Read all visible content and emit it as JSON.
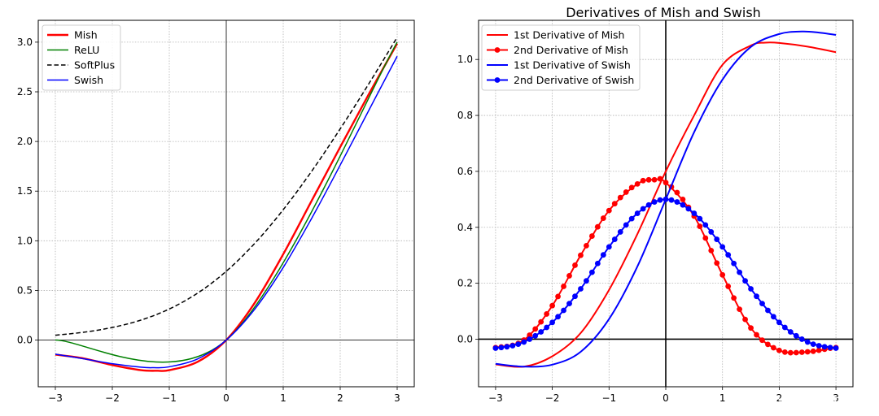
{
  "watermark": "CSDN @芝士不知世_",
  "chart_data": [
    {
      "type": "line",
      "title": "",
      "xlabel": "",
      "ylabel": "",
      "xlim": [
        -3.3,
        3.3
      ],
      "ylim": [
        -0.47,
        3.22
      ],
      "xticks": [
        -3,
        -2,
        -1,
        0,
        1,
        2,
        3
      ],
      "xtick_labels": [
        "−3",
        "−2",
        "−1",
        "0",
        "1",
        "2",
        "3"
      ],
      "yticks": [
        0.0,
        0.5,
        1.0,
        1.5,
        2.0,
        2.5,
        3.0
      ],
      "ytick_labels": [
        "0.0",
        "0.5",
        "1.0",
        "1.5",
        "2.0",
        "2.5",
        "3.0"
      ],
      "grid": true,
      "reference_lines": {
        "vertical_x": 0,
        "horizontal_y": 0
      },
      "legend_position": "top-left",
      "series": [
        {
          "name": "Mish",
          "color": "#ff0000",
          "style": "solid",
          "x": [
            -3,
            -2.5,
            -2,
            -1.5,
            -1.2,
            -1,
            -0.5,
            0,
            0.5,
            1,
            1.5,
            2,
            2.5,
            3
          ],
          "y": [
            -0.146,
            -0.185,
            -0.252,
            -0.303,
            -0.309,
            -0.303,
            -0.218,
            0,
            0.375,
            0.865,
            1.404,
            1.944,
            2.474,
            2.987
          ]
        },
        {
          "name": "ReLU",
          "color": "#008000",
          "style": "solid",
          "x": [
            -3,
            0,
            3
          ],
          "y": [
            0,
            0,
            3
          ]
        },
        {
          "name": "SoftPlus",
          "color": "#000000",
          "style": "dashed",
          "x": [
            -3,
            -2.5,
            -2,
            -1.5,
            -1,
            -0.5,
            0,
            0.5,
            1,
            1.5,
            2,
            2.5,
            3
          ],
          "y": [
            0.049,
            0.079,
            0.127,
            0.201,
            0.313,
            0.474,
            0.693,
            0.974,
            1.313,
            1.701,
            2.127,
            2.579,
            3.049
          ]
        },
        {
          "name": "Swish",
          "color": "#0000ff",
          "style": "solid",
          "x": [
            -3,
            -2.5,
            -2,
            -1.5,
            -1.28,
            -1,
            -0.5,
            0,
            0.5,
            1,
            1.5,
            2,
            2.5,
            3
          ],
          "y": [
            -0.142,
            -0.189,
            -0.238,
            -0.273,
            -0.278,
            -0.269,
            -0.189,
            0,
            0.311,
            0.731,
            1.227,
            1.762,
            2.311,
            2.858
          ]
        }
      ]
    },
    {
      "type": "line",
      "title": "Derivatives of Mish and Swish",
      "xlabel": "",
      "ylabel": "",
      "xlim": [
        -3.3,
        3.3
      ],
      "ylim": [
        -0.17,
        1.14
      ],
      "xticks": [
        -3,
        -2,
        -1,
        0,
        1,
        2,
        3
      ],
      "xtick_labels": [
        "−3",
        "−2",
        "−1",
        "0",
        "1",
        "2",
        "3"
      ],
      "yticks": [
        0.0,
        0.2,
        0.4,
        0.6,
        0.8,
        1.0
      ],
      "ytick_labels": [
        "0.0",
        "0.2",
        "0.4",
        "0.6",
        "0.8",
        "1.0"
      ],
      "grid": true,
      "reference_lines": {
        "vertical_x": 0,
        "horizontal_y": 0
      },
      "legend_position": "top-left",
      "series": [
        {
          "name": "1st Derivative of Mish",
          "color": "#ff0000",
          "markers": false,
          "x": [
            -3,
            -2.5,
            -2,
            -1.5,
            -1,
            -0.5,
            0,
            0.5,
            1,
            1.5,
            1.75,
            2,
            2.5,
            3
          ],
          "y": [
            -0.09,
            -0.098,
            -0.061,
            0.022,
            0.176,
            0.376,
            0.6,
            0.8,
            0.981,
            1.05,
            1.06,
            1.059,
            1.046,
            1.026
          ]
        },
        {
          "name": "2nd Derivative of Mish",
          "color": "#ff0000",
          "markers": true,
          "x": [
            -3,
            -2.5,
            -2,
            -1.5,
            -1,
            -0.5,
            -0.2,
            0,
            0.5,
            1,
            1.5,
            2,
            2.5,
            3
          ],
          "y": [
            -0.03,
            -0.003,
            0.12,
            0.3,
            0.46,
            0.555,
            0.57,
            0.56,
            0.44,
            0.23,
            0.04,
            -0.04,
            -0.045,
            -0.03
          ]
        },
        {
          "name": "1st Derivative of Swish",
          "color": "#0000ff",
          "markers": false,
          "x": [
            -3,
            -2.5,
            -2,
            -1.5,
            -1,
            -0.5,
            0,
            0.5,
            1,
            1.5,
            2,
            2.4,
            2.7,
            3
          ],
          "y": [
            -0.088,
            -0.098,
            -0.091,
            -0.045,
            0.072,
            0.26,
            0.5,
            0.74,
            0.928,
            1.045,
            1.091,
            1.1,
            1.096,
            1.088
          ]
        },
        {
          "name": "2nd Derivative of Swish",
          "color": "#0000ff",
          "markers": true,
          "x": [
            -3,
            -2.5,
            -2,
            -1.5,
            -1,
            -0.5,
            0,
            0.5,
            1,
            1.5,
            2,
            2.5,
            3
          ],
          "y": [
            -0.032,
            -0.01,
            0.06,
            0.18,
            0.33,
            0.45,
            0.5,
            0.45,
            0.33,
            0.18,
            0.06,
            -0.01,
            -0.032
          ]
        }
      ]
    }
  ]
}
